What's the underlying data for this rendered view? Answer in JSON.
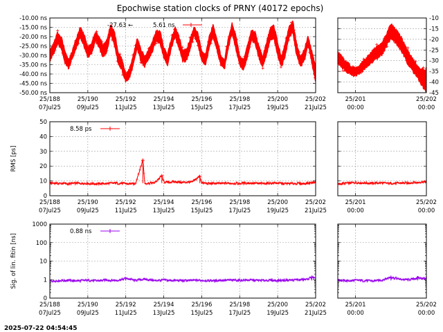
{
  "title": "Epochwise station clocks of PRNY (40172 epochs)",
  "timestamp": "2025-07-22 04:54:45",
  "colors": {
    "clock": "#ff0000",
    "rms": "#ff0000",
    "sigma": "#9900ee"
  },
  "chart_data": [
    {
      "type": "line",
      "name": "clock-main",
      "ylabel": "",
      "ylim": [
        -50,
        -10
      ],
      "yticks": [
        -10,
        -15,
        -20,
        -25,
        -30,
        -35,
        -40,
        -45,
        -50
      ],
      "ytick_labels": [
        "-10.00 ns",
        "-15.00 ns",
        "-20.00 ns",
        "-25.00 ns",
        "-30.00 ns",
        "-35.00 ns",
        "-40.00 ns",
        "-45.00 ns",
        "-50.00 ns"
      ],
      "xlim": [
        188,
        202
      ],
      "xticks": [
        188,
        190,
        192,
        194,
        196,
        198,
        200,
        202
      ],
      "xtick_labels": [
        [
          "25/188",
          "07Jul25"
        ],
        [
          "25/190",
          "09Jul25"
        ],
        [
          "25/192",
          "11Jul25"
        ],
        [
          "25/194",
          "13Jul25"
        ],
        [
          "25/196",
          "15Jul25"
        ],
        [
          "25/198",
          "17Jul25"
        ],
        [
          "25/200",
          "19Jul25"
        ],
        [
          "25/202",
          "21Jul25"
        ]
      ],
      "legend": {
        "mean": "-27.63",
        "arrow": "←",
        "value": "5.61 ns"
      },
      "series": [
        {
          "x": [
            188.0,
            188.2,
            188.4,
            188.6,
            188.8,
            189.0,
            189.2,
            189.4,
            189.6,
            189.8,
            190.0,
            190.2,
            190.4,
            190.6,
            190.8,
            191.0,
            191.2,
            191.4,
            191.6,
            191.8,
            192.0,
            192.2,
            192.4,
            192.6,
            192.8,
            193.0,
            193.2,
            193.4,
            193.6,
            193.8,
            194.0,
            194.2,
            194.4,
            194.6,
            194.8,
            195.0,
            195.2,
            195.4,
            195.6,
            195.8,
            196.0,
            196.2,
            196.4,
            196.6,
            196.8,
            197.0,
            197.2,
            197.4,
            197.6,
            197.8,
            198.0,
            198.2,
            198.4,
            198.6,
            198.8,
            199.0,
            199.2,
            199.4,
            199.6,
            199.8,
            200.0,
            200.2,
            200.4,
            200.6,
            200.8,
            201.0,
            201.2,
            201.4,
            201.6,
            201.8,
            202.0
          ],
          "lo": [
            -33,
            -29,
            -24,
            -26,
            -34,
            -37,
            -31,
            -26,
            -20,
            -25,
            -31,
            -29,
            -22,
            -26,
            -31,
            -28,
            -18,
            -24,
            -34,
            -38,
            -44,
            -42,
            -35,
            -26,
            -33,
            -36,
            -32,
            -28,
            -22,
            -23,
            -31,
            -35,
            -26,
            -20,
            -26,
            -33,
            -33,
            -26,
            -19,
            -24,
            -33,
            -35,
            -26,
            -20,
            -27,
            -35,
            -37,
            -26,
            -18,
            -27,
            -35,
            -38,
            -31,
            -22,
            -23,
            -31,
            -36,
            -30,
            -22,
            -21,
            -30,
            -36,
            -30,
            -20,
            -18,
            -30,
            -36,
            -33,
            -24,
            -34,
            -44
          ],
          "hi": [
            -28,
            -24,
            -18,
            -20,
            -28,
            -33,
            -27,
            -21,
            -15,
            -19,
            -26,
            -24,
            -17,
            -20,
            -25,
            -22,
            -14,
            -17,
            -29,
            -32,
            -40,
            -37,
            -30,
            -21,
            -27,
            -31,
            -27,
            -23,
            -17,
            -17,
            -26,
            -30,
            -21,
            -15,
            -20,
            -28,
            -27,
            -21,
            -15,
            -18,
            -28,
            -30,
            -20,
            -14,
            -21,
            -30,
            -33,
            -21,
            -13,
            -20,
            -30,
            -33,
            -25,
            -17,
            -17,
            -25,
            -31,
            -24,
            -16,
            -14,
            -23,
            -31,
            -23,
            -15,
            -12,
            -24,
            -31,
            -27,
            -20,
            -28,
            -36
          ]
        }
      ]
    },
    {
      "type": "line",
      "name": "clock-day",
      "ylim": [
        -45,
        -10
      ],
      "yticks": [
        -10,
        -15,
        -20,
        -25,
        -30,
        -35,
        -40,
        -45
      ],
      "ytick_labels": [
        "-10",
        "-15",
        "-20",
        "-25",
        "-30",
        "-35",
        "-40",
        "-45"
      ],
      "xlim": [
        201.5,
        202.0
      ],
      "xticks": [
        201.6,
        202.0
      ],
      "xtick_labels": [
        [
          "25/201",
          "00:00"
        ],
        [
          "25/202",
          "00:00"
        ]
      ],
      "series": [
        {
          "x": [
            201.5,
            201.55,
            201.6,
            201.65,
            201.7,
            201.75,
            201.8,
            201.85,
            201.9,
            201.95,
            202.0
          ],
          "lo": [
            -31,
            -35,
            -37,
            -34,
            -30,
            -27,
            -19,
            -24,
            -32,
            -38,
            -45
          ],
          "hi": [
            -26,
            -31,
            -34,
            -30,
            -25,
            -22,
            -13,
            -18,
            -26,
            -33,
            -35
          ]
        }
      ]
    },
    {
      "type": "line",
      "name": "rms-main",
      "ylabel": "RMS [ps]",
      "ylim": [
        0,
        50
      ],
      "yticks": [
        0,
        10,
        20,
        30,
        40,
        50
      ],
      "ytick_labels": [
        "0",
        "10",
        "20",
        "30",
        "40",
        "50"
      ],
      "xlim": [
        188,
        202
      ],
      "xticks": [
        188,
        190,
        192,
        194,
        196,
        198,
        200,
        202
      ],
      "xtick_labels": [
        [
          "25/188",
          "07Jul25"
        ],
        [
          "25/190",
          "09Jul25"
        ],
        [
          "25/192",
          "11Jul25"
        ],
        [
          "25/194",
          "13Jul25"
        ],
        [
          "25/196",
          "15Jul25"
        ],
        [
          "25/198",
          "17Jul25"
        ],
        [
          "25/200",
          "19Jul25"
        ],
        [
          "25/202",
          "21Jul25"
        ]
      ],
      "legend": {
        "value": "8.58 ps"
      },
      "series": [
        {
          "x": [
            188.0,
            188.5,
            189.0,
            189.5,
            190.0,
            190.5,
            191.0,
            191.5,
            192.0,
            192.5,
            192.9,
            193.0,
            193.5,
            193.9,
            194.0,
            194.5,
            195.0,
            195.5,
            195.9,
            196.0,
            196.5,
            197.0,
            197.5,
            198.0,
            198.5,
            199.0,
            199.5,
            200.0,
            200.5,
            201.0,
            201.5,
            202.0
          ],
          "y": [
            8.6,
            8.3,
            8.1,
            8.4,
            8.2,
            8.0,
            8.3,
            8.5,
            8.2,
            8.0,
            24.0,
            8.4,
            8.6,
            13.5,
            9.2,
            9.4,
            9.0,
            9.3,
            13.0,
            8.7,
            8.2,
            8.4,
            8.5,
            8.3,
            8.6,
            8.2,
            8.4,
            8.5,
            8.1,
            8.3,
            8.2,
            9.4
          ]
        }
      ]
    },
    {
      "type": "line",
      "name": "rms-day",
      "ylim": [
        0,
        50
      ],
      "xlim": [
        201.5,
        202.0
      ],
      "xticks": [
        201.6,
        202.0
      ],
      "xtick_labels": [
        [
          "25/201",
          "00:00"
        ],
        [
          "25/202",
          "00:00"
        ]
      ],
      "series": [
        {
          "x": [
            201.5,
            201.55,
            201.6,
            201.65,
            201.7,
            201.75,
            201.8,
            201.85,
            201.9,
            201.95,
            202.0
          ],
          "y": [
            7.8,
            8.6,
            8.9,
            8.7,
            8.5,
            8.6,
            8.4,
            8.5,
            8.7,
            9.0,
            9.4
          ]
        }
      ]
    },
    {
      "type": "line",
      "name": "sigma-main",
      "ylabel": "Sig. of lin. fitin [ns]",
      "yscale": "log",
      "ylim": [
        0.1,
        1000
      ],
      "yticks": [
        1000,
        100,
        10,
        1,
        0.1
      ],
      "ytick_labels": [
        "1000",
        "100",
        "10",
        "1",
        "0"
      ],
      "xlim": [
        188,
        202
      ],
      "xticks": [
        188,
        190,
        192,
        194,
        196,
        198,
        200,
        202
      ],
      "xtick_labels": [
        [
          "25/188",
          "07Jul25"
        ],
        [
          "25/190",
          "09Jul25"
        ],
        [
          "25/192",
          "11Jul25"
        ],
        [
          "25/194",
          "13Jul25"
        ],
        [
          "25/196",
          "15Jul25"
        ],
        [
          "25/198",
          "17Jul25"
        ],
        [
          "25/200",
          "19Jul25"
        ],
        [
          "25/202",
          "21Jul25"
        ]
      ],
      "legend": {
        "value": "0.88 ns"
      },
      "series": [
        {
          "x": [
            188.0,
            188.5,
            189.0,
            189.5,
            190.0,
            190.5,
            191.0,
            191.5,
            192.0,
            192.5,
            193.0,
            193.5,
            194.0,
            194.5,
            195.0,
            195.5,
            196.0,
            196.5,
            197.0,
            197.5,
            198.0,
            198.5,
            199.0,
            199.5,
            200.0,
            200.5,
            201.0,
            201.5,
            201.8,
            202.0
          ],
          "y": [
            0.85,
            0.88,
            0.9,
            0.87,
            0.92,
            0.86,
            0.95,
            0.89,
            1.15,
            0.92,
            1.05,
            0.88,
            0.95,
            0.9,
            0.88,
            0.92,
            0.9,
            0.87,
            0.93,
            0.95,
            0.92,
            0.96,
            0.9,
            0.93,
            0.91,
            0.95,
            0.98,
            1.0,
            1.35,
            1.1
          ]
        }
      ]
    },
    {
      "type": "line",
      "name": "sigma-day",
      "yscale": "log",
      "ylim": [
        0.1,
        1000
      ],
      "xlim": [
        201.5,
        202.0
      ],
      "xticks": [
        201.6,
        202.0
      ],
      "xtick_labels": [
        [
          "25/201",
          "00:00"
        ],
        [
          "25/202",
          "00:00"
        ]
      ],
      "series": [
        {
          "x": [
            201.5,
            201.55,
            201.6,
            201.65,
            201.7,
            201.75,
            201.8,
            201.85,
            201.9,
            201.95,
            202.0
          ],
          "y": [
            0.95,
            0.85,
            0.92,
            0.88,
            0.85,
            0.95,
            1.35,
            1.05,
            0.98,
            1.25,
            1.1
          ]
        }
      ]
    }
  ]
}
